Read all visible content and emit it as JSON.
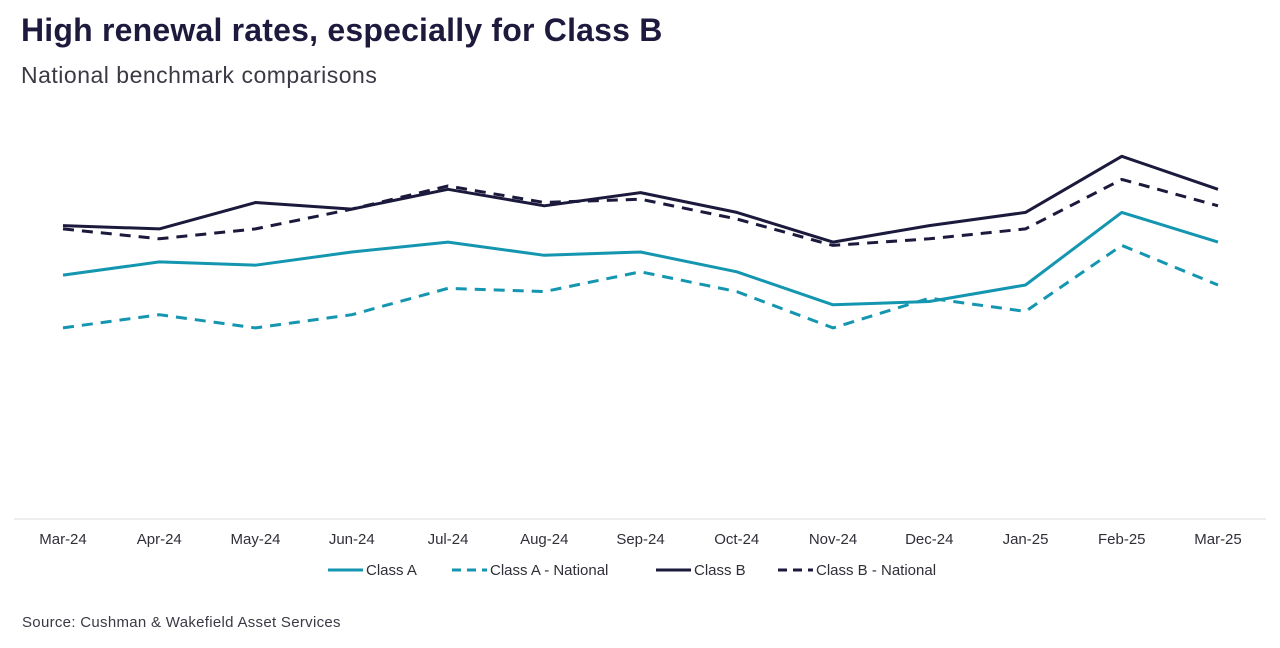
{
  "header": {
    "title": "High renewal rates, especially for Class B",
    "subtitle": "National benchmark comparisons"
  },
  "source": "Source: Cushman & Wakefield Asset Services",
  "colors": {
    "class_a": "#1496b0",
    "class_b": "#1c1a3c",
    "axis": "#dedede"
  },
  "chart_data": {
    "type": "line",
    "title": "High renewal rates, especially for Class B",
    "subtitle": "National benchmark comparisons",
    "xlabel": "",
    "ylabel": "",
    "ylim": [
      0,
      100
    ],
    "grid": false,
    "legend_position": "bottom-center",
    "categories": [
      "Mar-24",
      "Apr-24",
      "May-24",
      "Jun-24",
      "Jul-24",
      "Aug-24",
      "Sep-24",
      "Oct-24",
      "Nov-24",
      "Dec-24",
      "Jan-25",
      "Feb-25",
      "Mar-25"
    ],
    "series": [
      {
        "name": "Class A",
        "style": "solid",
        "color": "#1496b0",
        "values": [
          53,
          57,
          56,
          60,
          63,
          59,
          60,
          54,
          44,
          45,
          50,
          72,
          63
        ]
      },
      {
        "name": "Class A - National",
        "style": "dashed",
        "color": "#1496b0",
        "values": [
          37,
          41,
          37,
          41,
          49,
          48,
          54,
          48,
          37,
          46,
          42,
          62,
          50
        ]
      },
      {
        "name": "Class B",
        "style": "solid",
        "color": "#1c1a3c",
        "values": [
          68,
          67,
          75,
          73,
          79,
          74,
          78,
          72,
          63,
          68,
          72,
          89,
          79
        ]
      },
      {
        "name": "Class B - National",
        "style": "dashed",
        "color": "#1c1a3c",
        "values": [
          67,
          64,
          67,
          73,
          80,
          75,
          76,
          70,
          62,
          64,
          67,
          82,
          74
        ]
      }
    ]
  }
}
